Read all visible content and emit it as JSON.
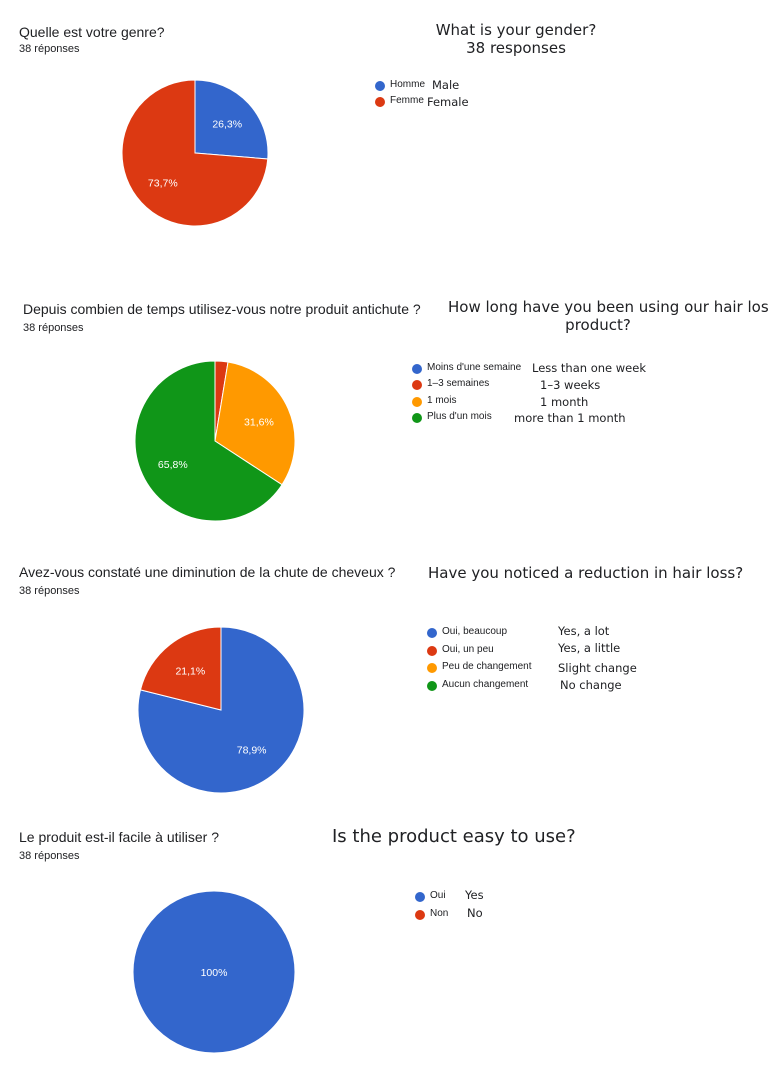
{
  "colors": {
    "blue": "#3366cc",
    "red": "#dc3912",
    "orange": "#ff9900",
    "green": "#109618"
  },
  "charts": [
    {
      "question": "Quelle est votre genre?",
      "responses": "38 réponses",
      "translation": {
        "title": "What is your gender?",
        "subtitle": "38 responses"
      },
      "legend": [
        {
          "label": "Homme",
          "translation": "Male",
          "color": "#3366cc"
        },
        {
          "label": "Femme",
          "translation": "Female",
          "color": "#dc3912"
        }
      ],
      "labels_shown": [
        "73,7%",
        "26,3%"
      ]
    },
    {
      "question": "Depuis combien de temps utilisez-vous notre produit antichute ?",
      "responses": "38 réponses",
      "translation": {
        "title_line1": "How long have you been using our hair loss",
        "title_line2": "product?"
      },
      "legend": [
        {
          "label": "Moins d'une semaine",
          "translation": "Less than one week",
          "color": "#3366cc"
        },
        {
          "label": "1–3 semaines",
          "translation": "1–3 weeks",
          "color": "#dc3912"
        },
        {
          "label": "1 mois",
          "translation": "1 month",
          "color": "#ff9900"
        },
        {
          "label": "Plus d'un mois",
          "translation": "more than 1 month",
          "color": "#109618"
        }
      ],
      "labels_shown": [
        "65,8%",
        "31,6%"
      ]
    },
    {
      "question": "Avez-vous constaté une diminution de la chute de cheveux ?",
      "responses": "38 réponses",
      "translation": {
        "title": "Have you noticed a reduction in hair loss?"
      },
      "legend": [
        {
          "label": "Oui, beaucoup",
          "translation": "Yes, a lot",
          "color": "#3366cc"
        },
        {
          "label": "Oui, un peu",
          "translation": "Yes, a little",
          "color": "#dc3912"
        },
        {
          "label": "Peu de changement",
          "translation": "Slight change",
          "color": "#ff9900"
        },
        {
          "label": "Aucun changement",
          "translation": "No change",
          "color": "#109618"
        }
      ],
      "labels_shown": [
        "21,1%",
        "78,9%"
      ]
    },
    {
      "question": "Le produit est-il facile à utiliser ?",
      "responses": "38 réponses",
      "translation": {
        "title": "Is the product easy to use?"
      },
      "legend": [
        {
          "label": "Oui",
          "translation": "Yes",
          "color": "#3366cc"
        },
        {
          "label": "Non",
          "translation": "No",
          "color": "#dc3912"
        }
      ],
      "labels_shown": [
        "100%"
      ]
    }
  ],
  "chart_data": [
    {
      "type": "pie",
      "title": "Quelle est votre genre?",
      "categories": [
        "Homme",
        "Femme"
      ],
      "values": [
        26.3,
        73.7
      ],
      "value_labels": [
        "26,3%",
        "73,7%"
      ],
      "colors": [
        "#3366cc",
        "#dc3912"
      ],
      "legend_position": "right"
    },
    {
      "type": "pie",
      "title": "Depuis combien de temps utilisez-vous notre produit antichute ?",
      "categories": [
        "Moins d'une semaine",
        "1–3 semaines",
        "1 mois",
        "Plus d'un mois"
      ],
      "values": [
        0,
        2.6,
        31.6,
        65.8
      ],
      "value_labels": [
        "",
        "",
        "31,6%",
        "65,8%"
      ],
      "colors": [
        "#3366cc",
        "#dc3912",
        "#ff9900",
        "#109618"
      ],
      "legend_position": "right"
    },
    {
      "type": "pie",
      "title": "Avez-vous constaté une diminution de la chute de cheveux ?",
      "categories": [
        "Oui, beaucoup",
        "Oui, un peu",
        "Peu de changement",
        "Aucun changement"
      ],
      "values": [
        78.9,
        21.1,
        0,
        0
      ],
      "value_labels": [
        "78,9%",
        "21,1%",
        "",
        ""
      ],
      "colors": [
        "#3366cc",
        "#dc3912",
        "#ff9900",
        "#109618"
      ],
      "legend_position": "right"
    },
    {
      "type": "pie",
      "title": "Le produit est-il facile à utiliser ?",
      "categories": [
        "Oui",
        "Non"
      ],
      "values": [
        100,
        0
      ],
      "value_labels": [
        "100%",
        ""
      ],
      "colors": [
        "#3366cc",
        "#dc3912"
      ],
      "legend_position": "right"
    }
  ]
}
